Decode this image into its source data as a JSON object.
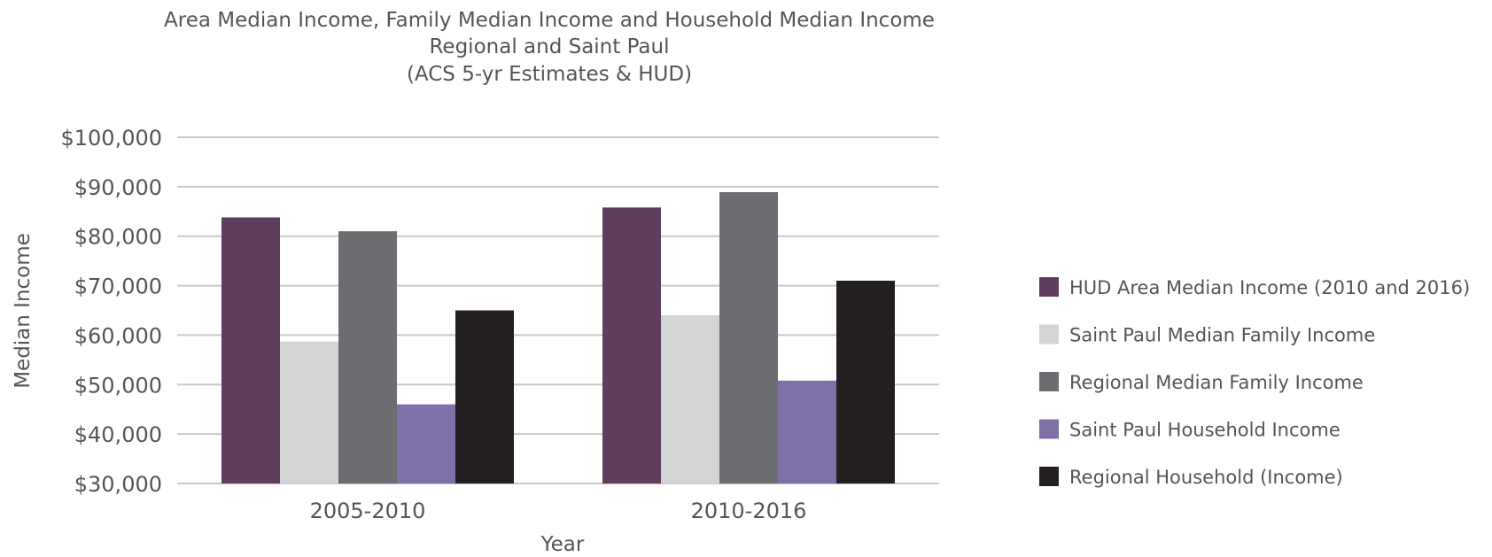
{
  "chart_data": {
    "type": "bar",
    "title_lines": [
      "Area Median Income, Family Median Income and Household Median Income",
      "Regional and Saint Paul",
      "(ACS 5-yr Estimates & HUD)"
    ],
    "xlabel": "Year",
    "ylabel": "Median Income",
    "categories": [
      "2005-2010",
      "2010-2016"
    ],
    "ylim": [
      30000,
      100000
    ],
    "yticks": [
      30000,
      40000,
      50000,
      60000,
      70000,
      80000,
      90000,
      100000
    ],
    "ytick_labels": [
      "$30,000",
      "$40,000",
      "$50,000",
      "$60,000",
      "$70,000",
      "$80,000",
      "$90,000",
      "$100,000"
    ],
    "grid": true,
    "legend_position": "right",
    "series": [
      {
        "name": "HUD Area Median Income (2010 and 2016)",
        "color": "#5f3d5c",
        "values": [
          83800,
          85800
        ]
      },
      {
        "name": "Saint Paul Median Family Income",
        "color": "#d3d4d6",
        "values": [
          58700,
          64000
        ]
      },
      {
        "name": "Regional Median Family Income",
        "color": "#6b6d70",
        "values": [
          81000,
          88900
        ]
      },
      {
        "name": "Saint Paul Household Income",
        "color": "#7f70a8",
        "values": [
          46000,
          50800
        ]
      },
      {
        "name": "Regional Household (Income)",
        "color": "#231f20",
        "values": [
          65000,
          71000
        ]
      }
    ]
  }
}
